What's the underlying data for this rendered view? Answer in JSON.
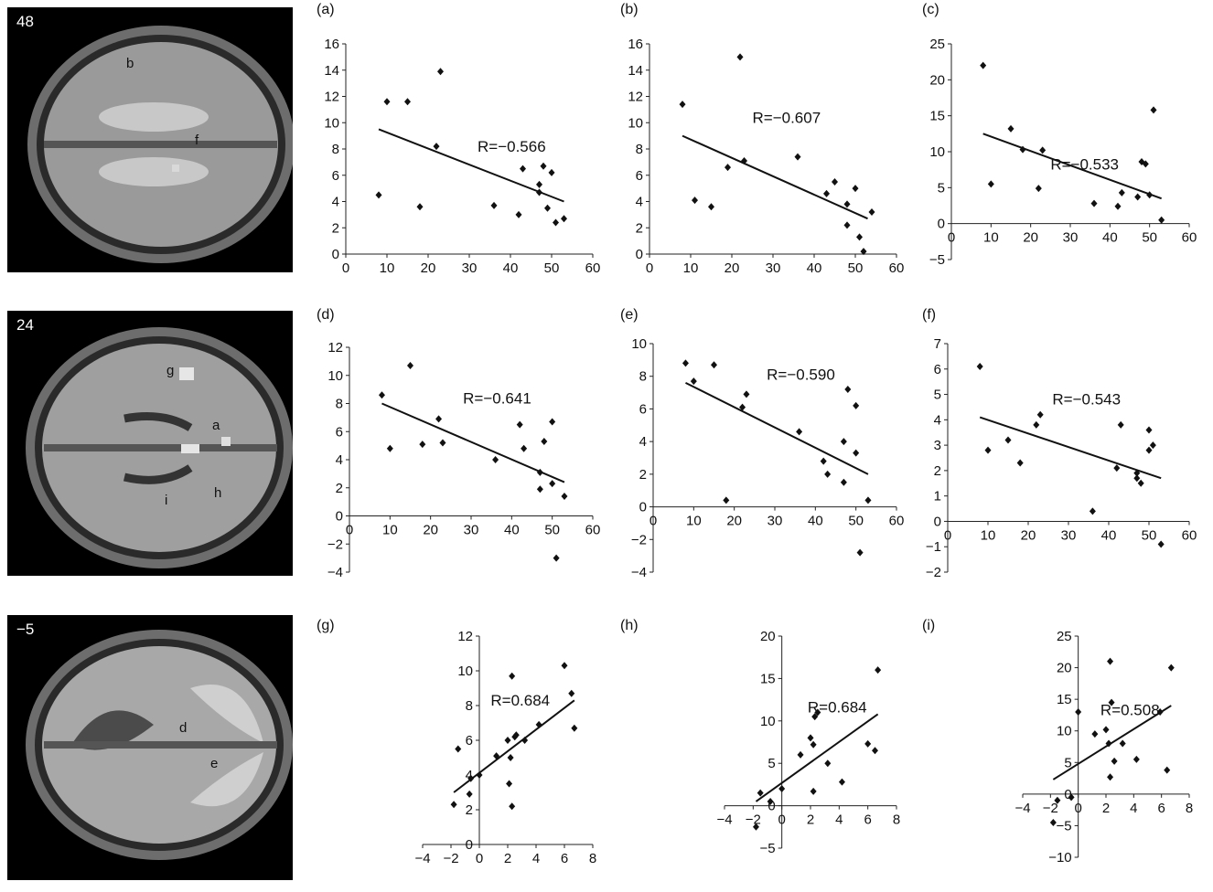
{
  "brain_slices": [
    {
      "label": "48",
      "markers": [
        "b",
        "f"
      ]
    },
    {
      "label": "24",
      "markers": [
        "g",
        "a",
        "i",
        "h"
      ]
    },
    {
      "label": "−5",
      "markers": [
        "d",
        "e"
      ]
    }
  ],
  "chart_data": [
    {
      "type": "scatter",
      "panel": "(a)",
      "annotation": "R=−0.566",
      "xlim": [
        0,
        60
      ],
      "ylim": [
        0,
        16
      ],
      "xticks": [
        0,
        10,
        20,
        30,
        40,
        50,
        60
      ],
      "yticks": [
        0,
        2,
        4,
        6,
        8,
        10,
        12,
        14,
        16
      ],
      "points": [
        [
          8,
          4.5
        ],
        [
          10,
          11.6
        ],
        [
          15,
          11.6
        ],
        [
          18,
          3.6
        ],
        [
          22,
          8.2
        ],
        [
          23,
          13.9
        ],
        [
          36,
          3.7
        ],
        [
          42,
          3
        ],
        [
          43,
          6.5
        ],
        [
          47,
          4.7
        ],
        [
          47,
          5.3
        ],
        [
          48,
          6.7
        ],
        [
          49,
          3.5
        ],
        [
          50,
          6.2
        ],
        [
          51,
          2.4
        ],
        [
          53,
          2.7
        ]
      ],
      "fit": [
        [
          8,
          9.5
        ],
        [
          53,
          4
        ]
      ]
    },
    {
      "type": "scatter",
      "panel": "(b)",
      "annotation": "R=−0.607",
      "xlim": [
        0,
        60
      ],
      "ylim": [
        0,
        16
      ],
      "xticks": [
        0,
        10,
        20,
        30,
        40,
        50,
        60
      ],
      "yticks": [
        0,
        2,
        4,
        6,
        8,
        10,
        12,
        14,
        16
      ],
      "points": [
        [
          8,
          11.4
        ],
        [
          11,
          4.1
        ],
        [
          15,
          3.6
        ],
        [
          19,
          6.6
        ],
        [
          22,
          15
        ],
        [
          23,
          7.1
        ],
        [
          36,
          7.4
        ],
        [
          43,
          4.6
        ],
        [
          45,
          5.5
        ],
        [
          48,
          3.8
        ],
        [
          48,
          2.2
        ],
        [
          50,
          5
        ],
        [
          51,
          1.3
        ],
        [
          52,
          0.2
        ],
        [
          54,
          3.2
        ]
      ],
      "fit": [
        [
          8,
          9
        ],
        [
          53,
          2.7
        ]
      ]
    },
    {
      "type": "scatter",
      "panel": "(c)",
      "annotation": "R=−0.533",
      "xlim": [
        0,
        60
      ],
      "ylim": [
        -5,
        25
      ],
      "xticks": [
        0,
        10,
        20,
        30,
        40,
        50,
        60
      ],
      "yticks": [
        -5,
        0,
        5,
        10,
        15,
        20,
        25
      ],
      "points": [
        [
          8,
          22
        ],
        [
          10,
          5.5
        ],
        [
          15,
          13.2
        ],
        [
          18,
          10.3
        ],
        [
          22,
          4.9
        ],
        [
          23,
          10.2
        ],
        [
          36,
          2.8
        ],
        [
          42,
          2.4
        ],
        [
          43,
          4.3
        ],
        [
          47,
          3.7
        ],
        [
          48,
          8.6
        ],
        [
          49,
          8.3
        ],
        [
          50,
          4
        ],
        [
          51,
          15.8
        ],
        [
          53,
          0.5
        ]
      ],
      "fit": [
        [
          8,
          12.5
        ],
        [
          53,
          3.5
        ]
      ]
    },
    {
      "type": "scatter",
      "panel": "(d)",
      "annotation": "R=−0.641",
      "xlim": [
        0,
        60
      ],
      "ylim": [
        -4,
        12
      ],
      "xticks": [
        0,
        10,
        20,
        30,
        40,
        50,
        60
      ],
      "yticks": [
        -4,
        -2,
        0,
        2,
        4,
        6,
        8,
        10,
        12
      ],
      "points": [
        [
          8,
          8.6
        ],
        [
          10,
          4.8
        ],
        [
          15,
          10.7
        ],
        [
          18,
          5.1
        ],
        [
          22,
          6.9
        ],
        [
          23,
          5.2
        ],
        [
          36,
          4
        ],
        [
          42,
          6.5
        ],
        [
          43,
          4.8
        ],
        [
          47,
          3.1
        ],
        [
          47,
          1.9
        ],
        [
          48,
          5.3
        ],
        [
          50,
          2.3
        ],
        [
          50,
          6.7
        ],
        [
          51,
          -3
        ],
        [
          53,
          1.4
        ]
      ],
      "fit": [
        [
          8,
          8
        ],
        [
          53,
          2.4
        ]
      ]
    },
    {
      "type": "scatter",
      "panel": "(e)",
      "annotation": "R=−0.590",
      "xlim": [
        0,
        60
      ],
      "ylim": [
        -4,
        10
      ],
      "xticks": [
        0,
        10,
        20,
        30,
        40,
        50,
        60
      ],
      "yticks": [
        -4,
        -2,
        0,
        2,
        4,
        6,
        8,
        10
      ],
      "points": [
        [
          8,
          8.8
        ],
        [
          10,
          7.7
        ],
        [
          15,
          8.7
        ],
        [
          18,
          0.4
        ],
        [
          22,
          6.1
        ],
        [
          23,
          6.9
        ],
        [
          36,
          4.6
        ],
        [
          42,
          2.8
        ],
        [
          43,
          2
        ],
        [
          47,
          1.5
        ],
        [
          47,
          4
        ],
        [
          48,
          7.2
        ],
        [
          50,
          3.3
        ],
        [
          50,
          6.2
        ],
        [
          51,
          -2.8
        ],
        [
          53,
          0.4
        ]
      ],
      "fit": [
        [
          8,
          7.6
        ],
        [
          53,
          2
        ]
      ]
    },
    {
      "type": "scatter",
      "panel": "(f)",
      "annotation": "R=−0.543",
      "xlim": [
        0,
        60
      ],
      "ylim": [
        -2,
        7
      ],
      "xticks": [
        0,
        10,
        20,
        30,
        40,
        50,
        60
      ],
      "yticks": [
        -2,
        -1,
        0,
        1,
        2,
        3,
        4,
        5,
        6,
        7
      ],
      "points": [
        [
          8,
          6.1
        ],
        [
          10,
          2.8
        ],
        [
          15,
          3.2
        ],
        [
          18,
          2.3
        ],
        [
          22,
          3.8
        ],
        [
          23,
          4.2
        ],
        [
          36,
          0.4
        ],
        [
          42,
          2.1
        ],
        [
          43,
          3.8
        ],
        [
          47,
          1.7
        ],
        [
          47,
          1.9
        ],
        [
          48,
          1.5
        ],
        [
          50,
          2.8
        ],
        [
          50,
          3.6
        ],
        [
          51,
          3
        ],
        [
          53,
          -0.9
        ]
      ],
      "fit": [
        [
          8,
          4.1
        ],
        [
          53,
          1.7
        ]
      ]
    },
    {
      "type": "scatter",
      "panel": "(g)",
      "annotation": "R=0.684",
      "xlim": [
        -4,
        8
      ],
      "ylim": [
        0,
        12
      ],
      "xticks": [
        -4,
        -2,
        0,
        2,
        4,
        6,
        8
      ],
      "yticks": [
        0,
        2,
        4,
        6,
        8,
        10,
        12
      ],
      "points": [
        [
          -1.8,
          2.3
        ],
        [
          -1.5,
          5.5
        ],
        [
          -0.7,
          2.9
        ],
        [
          -0.6,
          3.8
        ],
        [
          0,
          4
        ],
        [
          1.2,
          5.1
        ],
        [
          2,
          6
        ],
        [
          2.1,
          3.5
        ],
        [
          2.2,
          5
        ],
        [
          2.3,
          2.2
        ],
        [
          2.3,
          9.7
        ],
        [
          2.5,
          6.2
        ],
        [
          2.6,
          6.3
        ],
        [
          3.2,
          6
        ],
        [
          4.2,
          6.9
        ],
        [
          6,
          10.3
        ],
        [
          6.5,
          8.7
        ],
        [
          6.7,
          6.7
        ]
      ],
      "fit": [
        [
          -1.8,
          3
        ],
        [
          6.7,
          8.3
        ]
      ]
    },
    {
      "type": "scatter",
      "panel": "(h)",
      "annotation": "R=0.684",
      "xlim": [
        -4,
        8
      ],
      "ylim": [
        -5,
        20
      ],
      "xticks": [
        -4,
        -2,
        0,
        2,
        4,
        6,
        8
      ],
      "yticks": [
        -5,
        0,
        5,
        10,
        15,
        20
      ],
      "points": [
        [
          -1.8,
          -2.5
        ],
        [
          -1.5,
          1.5
        ],
        [
          -0.8,
          0.5
        ],
        [
          0,
          2
        ],
        [
          1.3,
          6
        ],
        [
          2,
          8
        ],
        [
          2.2,
          7.2
        ],
        [
          2.2,
          1.7
        ],
        [
          2.3,
          10.5
        ],
        [
          2.5,
          11
        ],
        [
          3.2,
          5
        ],
        [
          4.2,
          2.8
        ],
        [
          6,
          7.3
        ],
        [
          6.5,
          6.5
        ],
        [
          6.7,
          16
        ]
      ],
      "fit": [
        [
          -1.8,
          0.5
        ],
        [
          6.7,
          10.8
        ]
      ]
    },
    {
      "type": "scatter",
      "panel": "(i)",
      "annotation": "R=0.508",
      "xlim": [
        -4,
        8
      ],
      "ylim": [
        -10,
        25
      ],
      "xticks": [
        -4,
        -2,
        0,
        2,
        4,
        6,
        8
      ],
      "yticks": [
        -10,
        -5,
        0,
        5,
        10,
        15,
        20,
        25
      ],
      "points": [
        [
          -1.8,
          -4.5
        ],
        [
          -1.5,
          -1
        ],
        [
          -0.5,
          -0.5
        ],
        [
          0,
          13
        ],
        [
          1.2,
          9.5
        ],
        [
          2,
          10.2
        ],
        [
          2.2,
          8
        ],
        [
          2.3,
          21
        ],
        [
          2.3,
          2.7
        ],
        [
          2.4,
          14.5
        ],
        [
          2.6,
          5.2
        ],
        [
          3.2,
          8
        ],
        [
          4.2,
          5.5
        ],
        [
          5.9,
          13
        ],
        [
          6.4,
          3.8
        ],
        [
          6.7,
          20
        ]
      ],
      "fit": [
        [
          -1.8,
          2.3
        ],
        [
          6.7,
          14
        ]
      ]
    }
  ]
}
